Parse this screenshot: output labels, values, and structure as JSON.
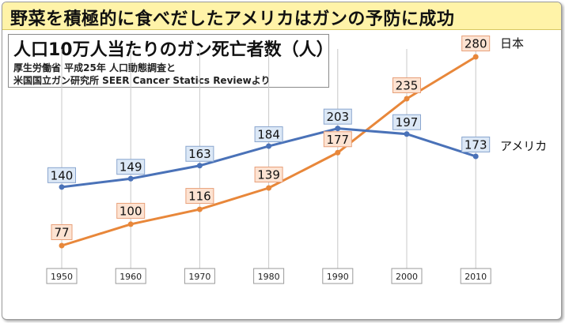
{
  "banner": {
    "text": "野菜を積極的に食べだしたアメリカはガンの予防に成功"
  },
  "header": {
    "title": "人口10万人当たりのガン死亡者数（人）",
    "source_line1": "厚生労働省 平成25年 人口動態調査と",
    "source_line2": "米国国立ガン研究所 SEER Cancer Statics Reviewより"
  },
  "chart_data": {
    "type": "line",
    "title": "人口10万人当たりのガン死亡者数（人）",
    "categories": [
      "1950",
      "1960",
      "1970",
      "1980",
      "1990",
      "2000",
      "2010"
    ],
    "ylim": [
      60,
      290
    ],
    "grid": "vertical lines at each category",
    "series": [
      {
        "name": "日本",
        "color": "#e8873a",
        "label_fill": "#fde3d2",
        "label_stroke": "#e8a07a",
        "values": [
          77,
          100,
          116,
          139,
          177,
          235,
          280
        ]
      },
      {
        "name": "アメリカ",
        "color": "#4a72b8",
        "label_fill": "#dce8f6",
        "label_stroke": "#8aa6cf",
        "values": [
          140,
          149,
          163,
          184,
          203,
          197,
          173
        ]
      }
    ]
  }
}
